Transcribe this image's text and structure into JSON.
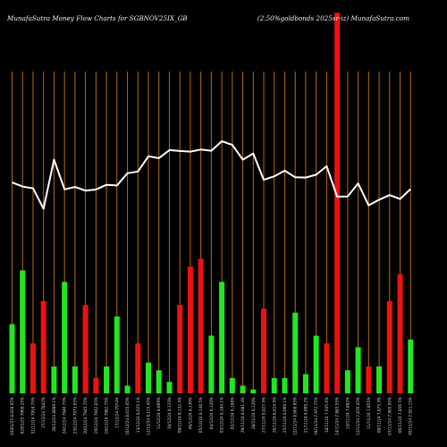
{
  "header": {
    "left": "MunafaSutra  Money Flow  Charts for SGBNOV25IX_GB",
    "right": "(2.50%goldbonds 2025sr-iz) MunafaSutra.com"
  },
  "chart_data": {
    "type": "bar",
    "title": "MunafaSutra  Money Flow  Charts for SGBNOV25IX_GB",
    "subtitle": "(2.50%goldbonds 2025sr-iz) MunafaSutra.com",
    "categories": [
      "03 Fri Jan 2025",
      "02 Thu Jan 2025",
      "31 Tue Dec 2024",
      "27 Fri Dec 2024",
      "26 Thu Dec 2024",
      "24 Tue Dec 2024",
      "23 Mon Dec 2024",
      "20 Fri Dec 2024",
      "19 Thu Dec 2024",
      "18 Wed Dec 2024",
      "17 Tue Dec 2024",
      "16 Mon Dec 2024",
      "13 Fri Dec 2024",
      "12 Thu Dec 2024",
      "11 Wed Dec 2024",
      "10 Tue Dec 2024",
      "09 Mon Dec 2024",
      "06 Fri Dec 2024",
      "05 Thu Dec 2024",
      "04 Wed Dec 2024",
      "03 Tue Dec 2024",
      "02 Mon Dec 2024",
      "29 Fri Nov 2024",
      "28 Thu Nov 2024",
      "27 Wed Nov 2024",
      "26 Tue Nov 2024",
      "25 Mon Nov 2024",
      "22 Fri Nov 2024",
      "21 Thu Nov 2024",
      "19 Tue Nov 2024",
      "18 Mon Nov 2024",
      "14 Thu Nov 2024",
      "13 Wed Nov 2024",
      "12 Tue Nov 2024",
      "11 Mon Nov 2024",
      "08 Fri Nov 2024",
      "07 Thu Nov 2024",
      "06 Wed Nov 2024",
      "05 Tue Nov 2024"
    ],
    "tick_labels": [
      "03/01/25 8,028.05%",
      "02/01/25 7960.25%",
      "31/12/24 7954.75%",
      "27/12/24 7842%",
      "26/12/24 8089.1%",
      "24/12/24 7940.75%",
      "23/12/24 7973.65%",
      "20/12/24 7945.75%",
      "19/12/24 7942.05%",
      "18/12/24 7982.75%",
      "17/12/24 7974%",
      "16/12/24 8,015.05%",
      "13/12/24 8,025.1%",
      "12/12/24 8,115.45%",
      "11/12/24 8,069%",
      "10/12/24 8,133%",
      "09/12/24 8,132.4%",
      "06/12/24 8,130%",
      "05/12/24 8,140.5%",
      "04/12/24 8,120%",
      "03/12/24 8,184.1%",
      "02/12/24 8,168%",
      "29/11/24 8,081.4%",
      "28/11/24 8,120%",
      "27/11/24 8,027.4%",
      "26/11/24 8,024.9%",
      "25/11/24 8,069.1%",
      "22/11/24 8,060.85%",
      "21/11/24 8,009.2%",
      "19/11/24 7,972.75%",
      "18/11/24 7,935.6%",
      "14/11/24 7,885.55%",
      "13/11/24 7,882%",
      "12/11/24 7,870.45%",
      "11/11/24 7,855%",
      "08/11/24 7,875.3%",
      "07/11/24 7,905.95%",
      "06/11/24 7,856.5%",
      "05/11/24 7,921.15%"
    ],
    "series": [
      {
        "values": [
          9,
          16,
          6.5,
          12,
          3.5,
          14.5,
          3.5,
          11.5,
          2,
          3.5,
          10,
          1,
          6.5,
          4,
          3,
          1.5,
          11.5,
          16.5,
          17.5,
          7.5,
          14.5,
          2,
          1,
          0.5,
          11,
          2,
          2,
          10.5,
          2.5,
          7.5,
          6.5,
          49.5,
          3,
          6,
          3.5,
          3.5,
          12,
          15.5,
          7
        ],
        "colors": [
          "g",
          "g",
          "r",
          "r",
          "g",
          "g",
          "g",
          "r",
          "r",
          "g",
          "g",
          "g",
          "r",
          "g",
          "g",
          "g",
          "r",
          "r",
          "r",
          "g",
          "g",
          "g",
          "g",
          "g",
          "r",
          "g",
          "g",
          "g",
          "g",
          "g",
          "r",
          "r",
          "g",
          "g",
          "r",
          "g",
          "r",
          "r",
          "g"
        ]
      },
      {
        "values": [
          7981.75,
          7961.65,
          7952.25,
          7851.2,
          8095.6,
          7947.55,
          7959.5,
          7941.15,
          7946.75,
          7970.4,
          7966.65,
          8027.65,
          8036.4,
          8111.95,
          8102.8,
          8142.5,
          8138.05,
          8135.05,
          8145.3,
          8139.65,
          8186.55,
          8168.85,
          8095.3,
          8125.9,
          7995.25,
          8012.25,
          8040.55,
          8007.65,
          8006.25,
          8020.6,
          8062.45,
          7911.1,
          7912.55,
          7977.3,
          7867.85,
          7895.85,
          7919.05,
          7899.45,
          7949
        ]
      }
    ],
    "colors": {
      "positive": "#22e622",
      "negative": "#ee1111",
      "line": "#ffffff",
      "grid": "#b86a14"
    }
  }
}
